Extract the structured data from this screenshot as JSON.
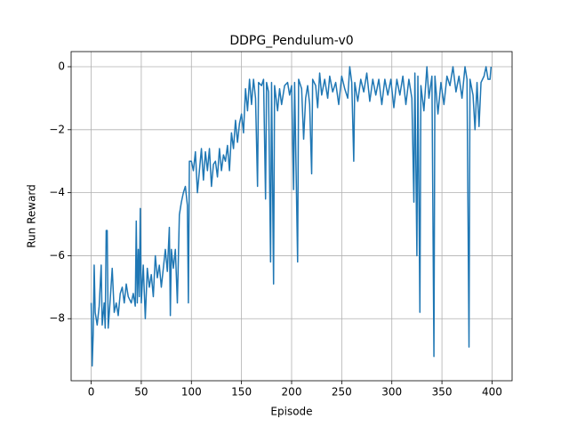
{
  "chart_data": {
    "type": "line",
    "title": "DDPG_Pendulum-v0",
    "x_label": "Episode",
    "y_label": "Run Reward",
    "x": [
      0,
      1,
      2,
      3,
      4,
      6,
      8,
      10,
      11,
      13,
      14,
      15,
      16,
      17,
      19,
      21,
      23,
      25,
      27,
      29,
      31,
      33,
      35,
      37,
      40,
      42,
      44,
      45,
      46,
      47,
      48,
      49,
      50,
      52,
      54,
      56,
      58,
      60,
      62,
      64,
      66,
      68,
      70,
      72,
      74,
      76,
      78,
      79,
      80,
      82,
      84,
      86,
      88,
      90,
      92,
      94,
      96,
      97,
      98,
      100,
      102,
      104,
      106,
      108,
      110,
      112,
      114,
      116,
      118,
      120,
      122,
      124,
      126,
      128,
      130,
      132,
      134,
      136,
      138,
      140,
      142,
      144,
      146,
      148,
      150,
      152,
      154,
      156,
      158,
      160,
      162,
      164,
      166,
      167,
      170,
      172,
      174,
      175,
      177,
      179,
      180,
      182,
      183,
      186,
      188,
      190,
      193,
      196,
      198,
      200,
      202,
      203,
      206,
      207,
      210,
      212,
      214,
      216,
      218,
      220,
      221,
      224,
      226,
      228,
      230,
      233,
      236,
      238,
      241,
      244,
      247,
      250,
      253,
      256,
      258,
      260,
      262,
      263,
      266,
      269,
      272,
      275,
      278,
      281,
      284,
      287,
      290,
      293,
      296,
      299,
      302,
      305,
      308,
      311,
      314,
      317,
      320,
      322,
      323,
      325,
      326,
      328,
      329,
      332,
      335,
      337,
      340,
      342,
      343,
      346,
      349,
      352,
      355,
      358,
      361,
      364,
      367,
      370,
      373,
      375,
      377,
      378,
      381,
      383,
      385,
      387,
      389,
      392,
      394,
      396,
      398,
      399
    ],
    "values": [
      -7.5,
      -9.5,
      -8.5,
      -6.3,
      -7.8,
      -8.2,
      -7.6,
      -6.3,
      -8.2,
      -7.5,
      -8.3,
      -5.2,
      -5.2,
      -8.3,
      -7.4,
      -6.4,
      -7.8,
      -7.5,
      -7.9,
      -7.2,
      -7.0,
      -7.5,
      -6.9,
      -7.3,
      -7.5,
      -7.2,
      -7.6,
      -4.9,
      -7.5,
      -5.8,
      -7.3,
      -4.5,
      -7.5,
      -6.3,
      -8.0,
      -6.4,
      -7.0,
      -6.6,
      -7.3,
      -6.0,
      -6.7,
      -6.3,
      -7.0,
      -6.4,
      -5.8,
      -6.5,
      -5.1,
      -7.9,
      -5.8,
      -6.4,
      -5.8,
      -7.5,
      -4.7,
      -4.3,
      -4.0,
      -3.8,
      -4.4,
      -7.5,
      -3.0,
      -3.0,
      -3.3,
      -2.7,
      -4.0,
      -3.3,
      -2.6,
      -3.6,
      -2.7,
      -3.3,
      -2.6,
      -3.8,
      -3.1,
      -3.0,
      -3.5,
      -2.6,
      -3.3,
      -2.8,
      -3.0,
      -2.5,
      -3.3,
      -2.1,
      -2.6,
      -1.7,
      -2.4,
      -1.8,
      -1.5,
      -2.1,
      -0.7,
      -1.4,
      -0.4,
      -1.2,
      -0.4,
      -1.0,
      -3.8,
      -0.5,
      -0.6,
      -0.4,
      -4.2,
      -0.5,
      -0.8,
      -6.2,
      -0.5,
      -6.9,
      -0.6,
      -1.4,
      -0.7,
      -1.2,
      -0.6,
      -0.5,
      -0.9,
      -0.6,
      -3.9,
      -0.5,
      -6.2,
      -0.4,
      -0.7,
      -2.3,
      -1.0,
      -0.6,
      -1.2,
      -3.4,
      -0.4,
      -0.6,
      -1.3,
      -0.2,
      -0.9,
      -0.4,
      -1.0,
      -0.3,
      -0.8,
      -0.5,
      -1.2,
      -0.3,
      -0.7,
      -1.0,
      0.0,
      -0.5,
      -3.0,
      -0.5,
      -1.1,
      -0.4,
      -0.8,
      -0.2,
      -1.1,
      -0.4,
      -0.9,
      -0.4,
      -1.2,
      -0.4,
      -0.9,
      -0.4,
      -1.3,
      -0.4,
      -0.9,
      -0.3,
      -1.2,
      -0.4,
      -1.0,
      -4.3,
      -0.2,
      -6.0,
      -0.3,
      -7.8,
      -0.6,
      -1.4,
      0.0,
      -1.0,
      -0.3,
      -9.2,
      -0.3,
      -1.5,
      -0.5,
      -1.2,
      -0.3,
      -0.6,
      0.0,
      -0.8,
      -0.3,
      -1.0,
      0.0,
      -0.4,
      -8.9,
      -0.4,
      -0.9,
      -2.0,
      -0.5,
      -1.9,
      -0.5,
      -0.3,
      0.0,
      -0.4,
      -0.4,
      0.0
    ],
    "color": "#1f77b4",
    "xlim": [
      -20,
      420
    ],
    "xticks": [
      0,
      50,
      100,
      150,
      200,
      250,
      300,
      350,
      400
    ],
    "ylim": [
      -9.97,
      0.48
    ],
    "yticks": [
      {
        "value": -8,
        "label": "−8"
      },
      {
        "value": -6,
        "label": "−6"
      },
      {
        "value": -4,
        "label": "−4"
      },
      {
        "value": -2,
        "label": "−2"
      },
      0
    ],
    "grid": true
  }
}
